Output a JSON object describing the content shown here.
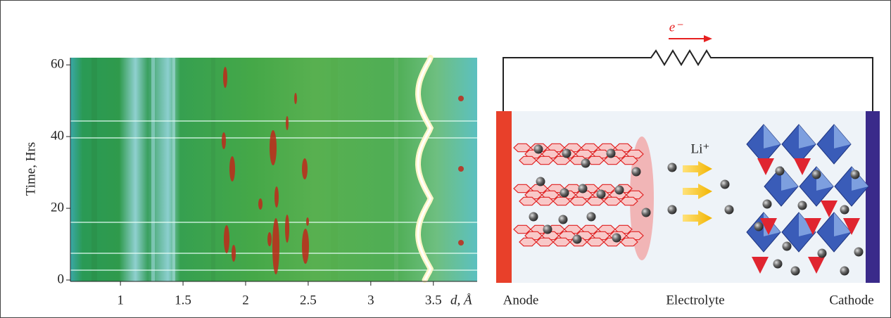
{
  "chart_data": {
    "type": "heatmap",
    "y_label": "Time, Hrs",
    "x_label": "d, Å",
    "xlim": [
      0.6,
      3.85
    ],
    "ylim": [
      0,
      62
    ],
    "xticks": [
      1,
      1.5,
      2,
      2.5,
      3,
      3.5
    ],
    "yticks": [
      0,
      20,
      40,
      60
    ]
  },
  "diagram": {
    "current_label": "e⁻",
    "ion_label": "Li⁺",
    "labels": [
      "Anode",
      "Electrolyte",
      "Cathode"
    ]
  }
}
